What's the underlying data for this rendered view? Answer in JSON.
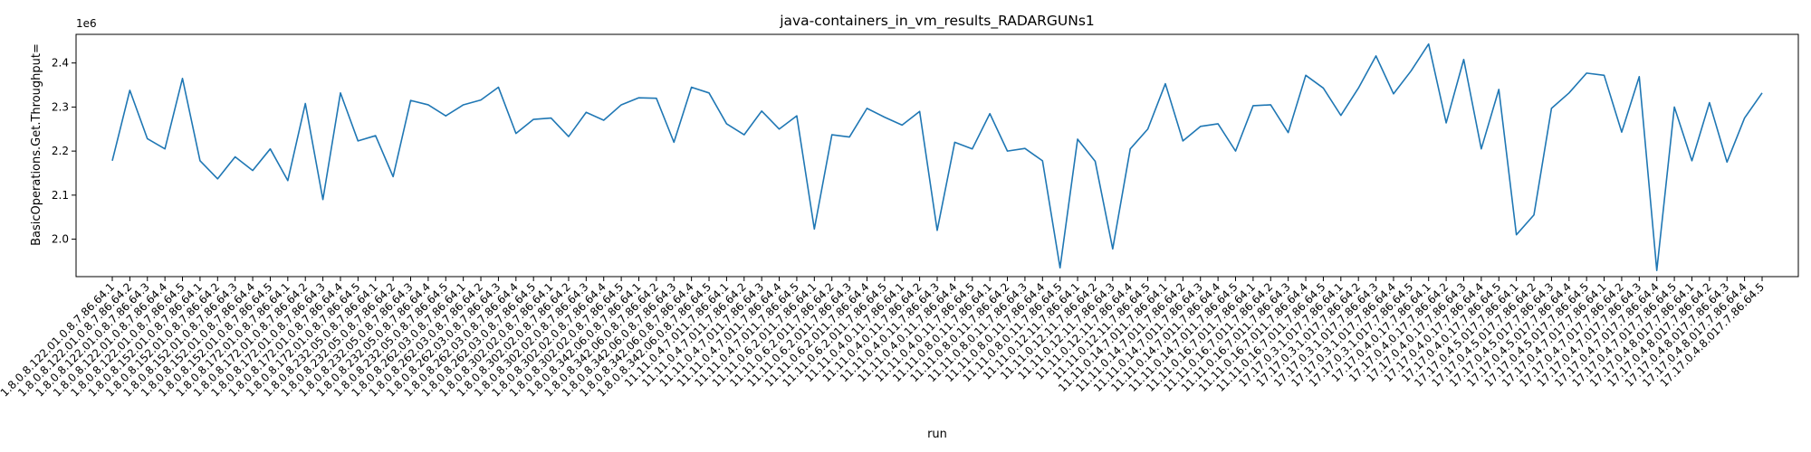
{
  "chart_data": {
    "type": "line",
    "title": "java-containers_in_vm_results_RADARGUNs1",
    "xlabel": "run",
    "ylabel": "BasicOperations.Get.Throughput=",
    "y_offset_text": "1e6",
    "y_scale_factor": 1000000,
    "yticks": [
      2.0,
      2.1,
      2.2,
      2.3,
      2.4
    ],
    "ytick_labels": [
      "2.0",
      "2.1",
      "2.2",
      "2.3",
      "2.4"
    ],
    "ylim": [
      1.915,
      2.465
    ],
    "grid": false,
    "line_color": "#1f77b4",
    "categories": [
      "1.8.0.8.122.01.0.8.7.86.64.1",
      "1.8.0.8.122.01.0.8.7.86.64.2",
      "1.8.0.8.122.01.0.8.7.86.64.3",
      "1.8.0.8.122.01.0.8.7.86.64.4",
      "1.8.0.8.122.01.0.8.7.86.64.5",
      "1.8.0.8.152.01.0.8.7.86.64.1",
      "1.8.0.8.152.01.0.8.7.86.64.2",
      "1.8.0.8.152.01.0.8.7.86.64.3",
      "1.8.0.8.152.01.0.8.7.86.64.4",
      "1.8.0.8.152.01.0.8.7.86.64.5",
      "1.8.0.8.172.01.0.8.7.86.64.1",
      "1.8.0.8.172.01.0.8.7.86.64.2",
      "1.8.0.8.172.01.0.8.7.86.64.3",
      "1.8.0.8.172.01.0.8.7.86.64.4",
      "1.8.0.8.172.01.0.8.7.86.64.5",
      "1.8.0.8.232.05.0.8.7.86.64.1",
      "1.8.0.8.232.05.0.8.7.86.64.2",
      "1.8.0.8.232.05.0.8.7.86.64.3",
      "1.8.0.8.232.05.0.8.7.86.64.4",
      "1.8.0.8.232.05.0.8.7.86.64.5",
      "1.8.0.8.262.03.0.8.7.86.64.1",
      "1.8.0.8.262.03.0.8.7.86.64.2",
      "1.8.0.8.262.03.0.8.7.86.64.3",
      "1.8.0.8.262.03.0.8.7.86.64.4",
      "1.8.0.8.262.03.0.8.7.86.64.5",
      "1.8.0.8.302.02.0.8.7.86.64.1",
      "1.8.0.8.302.02.0.8.7.86.64.2",
      "1.8.0.8.302.02.0.8.7.86.64.3",
      "1.8.0.8.302.02.0.8.7.86.64.4",
      "1.8.0.8.302.02.0.8.7.86.64.5",
      "1.8.0.8.342.06.0.8.7.86.64.1",
      "1.8.0.8.342.06.0.8.7.86.64.2",
      "1.8.0.8.342.06.0.8.7.86.64.3",
      "1.8.0.8.342.06.0.8.7.86.64.4",
      "1.8.0.8.342.06.0.8.7.86.64.5",
      "11.11.0.4.7.011.7.86.64.1",
      "11.11.0.4.7.011.7.86.64.2",
      "11.11.0.4.7.011.7.86.64.3",
      "11.11.0.4.7.011.7.86.64.4",
      "11.11.0.4.7.011.7.86.64.5",
      "11.11.0.6.2.011.7.86.64.1",
      "11.11.0.6.2.011.7.86.64.2",
      "11.11.0.6.2.011.7.86.64.3",
      "11.11.0.6.2.011.7.86.64.4",
      "11.11.0.6.2.011.7.86.64.5",
      "11.11.0.4.0.11.7.86.64.1",
      "11.11.0.4.0.11.7.86.64.2",
      "11.11.0.4.0.11.7.86.64.3",
      "11.11.0.4.0.11.7.86.64.4",
      "11.11.0.4.0.11.7.86.64.5",
      "11.11.0.8.0.11.7.86.64.1",
      "11.11.0.8.0.11.7.86.64.2",
      "11.11.0.8.0.11.7.86.64.3",
      "11.11.0.8.0.11.7.86.64.4",
      "11.11.0.8.0.11.7.86.64.5",
      "11.11.0.12.11.7.86.64.1",
      "11.11.0.12.11.7.86.64.2",
      "11.11.0.12.11.7.86.64.3",
      "11.11.0.12.11.7.86.64.4",
      "11.11.0.12.11.7.86.64.5",
      "11.11.0.14.7.011.7.86.64.1",
      "11.11.0.14.7.011.7.86.64.2",
      "11.11.0.14.7.011.7.86.64.3",
      "11.11.0.14.7.011.7.86.64.4",
      "11.11.0.14.7.011.7.86.64.5",
      "11.11.0.16.7.011.7.86.64.1",
      "11.11.0.16.7.011.7.86.64.2",
      "11.11.0.16.7.011.7.86.64.3",
      "11.11.0.16.7.011.7.86.64.4",
      "11.11.0.16.7.011.7.86.64.5",
      "17.17.0.3.1.017.7.86.64.1",
      "17.17.0.3.1.017.7.86.64.2",
      "17.17.0.3.1.017.7.86.64.3",
      "17.17.0.3.1.017.7.86.64.4",
      "17.17.0.3.1.017.7.86.64.5",
      "17.17.0.4.0.17.7.86.64.1",
      "17.17.0.4.0.17.7.86.64.2",
      "17.17.0.4.0.17.7.86.64.3",
      "17.17.0.4.0.17.7.86.64.4",
      "17.17.0.4.0.17.7.86.64.5",
      "17.17.0.4.5.017.7.86.64.1",
      "17.17.0.4.5.017.7.86.64.2",
      "17.17.0.4.5.017.7.86.64.3",
      "17.17.0.4.5.017.7.86.64.4",
      "17.17.0.4.5.017.7.86.64.5",
      "17.17.0.4.7.017.7.86.64.1",
      "17.17.0.4.7.017.7.86.64.2",
      "17.17.0.4.7.017.7.86.64.3",
      "17.17.0.4.7.017.7.86.64.4",
      "17.17.0.4.7.017.7.86.64.5",
      "17.17.0.4.8.017.7.86.64.1",
      "17.17.0.4.8.017.7.86.64.2",
      "17.17.0.4.8.017.7.86.64.3",
      "17.17.0.4.8.017.7.86.64.4",
      "17.17.0.4.8.017.7.86.64.5"
    ],
    "values": [
      2.178,
      2.338,
      2.228,
      2.205,
      2.365,
      2.178,
      2.137,
      2.187,
      2.156,
      2.205,
      2.133,
      2.308,
      2.09,
      2.332,
      2.223,
      2.235,
      2.142,
      2.315,
      2.305,
      2.28,
      2.305,
      2.316,
      2.345,
      2.24,
      2.272,
      2.275,
      2.233,
      2.288,
      2.27,
      2.305,
      2.321,
      2.32,
      2.22,
      2.345,
      2.332,
      2.262,
      2.237,
      2.291,
      2.25,
      2.28,
      2.023,
      2.237,
      2.232,
      2.297,
      2.277,
      2.259,
      2.29,
      2.02,
      2.22,
      2.205,
      2.285,
      2.2,
      2.206,
      2.178,
      1.935,
      2.227,
      2.177,
      1.978,
      2.205,
      2.25,
      2.353,
      2.223,
      2.256,
      2.262,
      2.2,
      2.303,
      2.305,
      2.242,
      2.372,
      2.343,
      2.281,
      2.343,
      2.416,
      2.33,
      2.382,
      2.443,
      2.264,
      2.408,
      2.205,
      2.34,
      2.01,
      2.055,
      2.297,
      2.332,
      2.377,
      2.372,
      2.243,
      2.369,
      1.929,
      2.3,
      2.178,
      2.31,
      2.175,
      2.275,
      2.332
    ]
  }
}
